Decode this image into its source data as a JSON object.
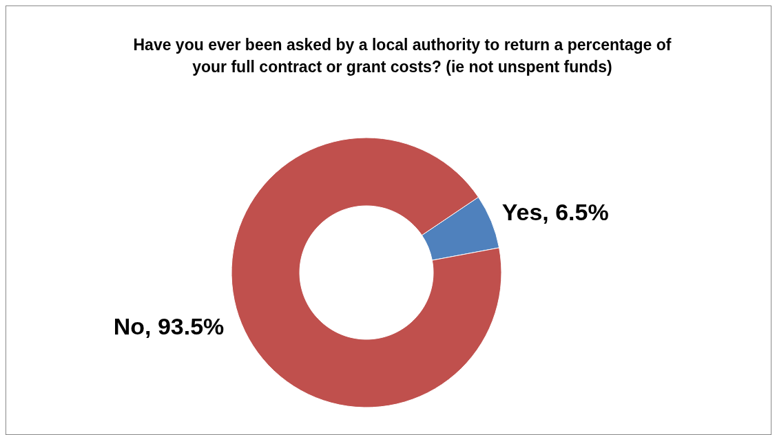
{
  "chart_data": {
    "type": "donut",
    "title": "Have you ever been asked by a local authority to return a percentage of your full contract or grant costs? (ie not unspent funds)",
    "categories": [
      "Yes",
      "No"
    ],
    "values": [
      6.5,
      93.5
    ],
    "value_labels": [
      "6.5%",
      "93.5%"
    ],
    "colors": [
      "#4f81bd",
      "#c0504d"
    ],
    "legend": false
  }
}
